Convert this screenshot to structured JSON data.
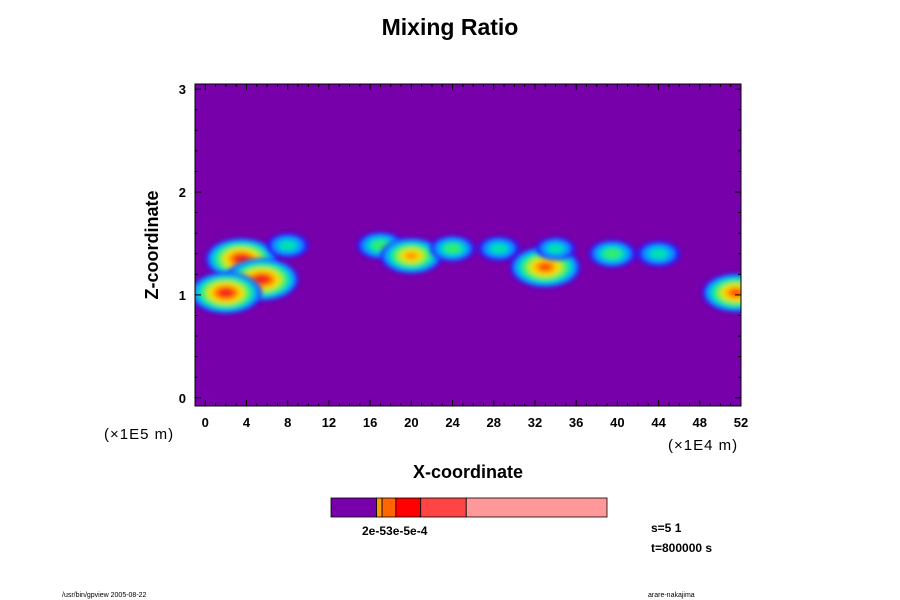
{
  "chart_data": {
    "type": "heatmap",
    "title": "Mixing Ratio",
    "xlabel": "X-coordinate",
    "ylabel": "Z-coordinate",
    "x_scale_note": "(×1E4 m)",
    "y_scale_note": "(×1E5 m)",
    "xlim": [
      -1,
      52
    ],
    "ylim": [
      -0.08,
      3.05
    ],
    "x_ticks": [
      "0",
      "4",
      "8",
      "12",
      "16",
      "20",
      "24",
      "28",
      "32",
      "36",
      "40",
      "44",
      "48",
      "52"
    ],
    "y_ticks": [
      "0",
      "1",
      "2",
      "3"
    ],
    "x_tick_values": [
      0,
      4,
      8,
      12,
      16,
      20,
      24,
      28,
      32,
      36,
      40,
      44,
      48,
      52
    ],
    "y_tick_values": [
      0,
      1,
      2,
      3
    ],
    "background_color": "#7700aa",
    "colormap_levels": [
      "#7700aa",
      "#2222ff",
      "#00a0ff",
      "#00e0b0",
      "#33ee66",
      "#aaee22",
      "#ffd800",
      "#ff9900",
      "#ff4400",
      "#ee2222"
    ],
    "features": [
      {
        "x": 3.5,
        "z": 1.35,
        "intensity": 0.95
      },
      {
        "x": 5.5,
        "z": 1.15,
        "intensity": 0.98
      },
      {
        "x": 2.0,
        "z": 1.02,
        "intensity": 0.95
      },
      {
        "x": 8.0,
        "z": 1.48,
        "intensity": 0.35
      },
      {
        "x": 17.0,
        "z": 1.48,
        "intensity": 0.45
      },
      {
        "x": 20.0,
        "z": 1.38,
        "intensity": 0.75
      },
      {
        "x": 24.0,
        "z": 1.45,
        "intensity": 0.4
      },
      {
        "x": 28.5,
        "z": 1.45,
        "intensity": 0.35
      },
      {
        "x": 33.0,
        "z": 1.27,
        "intensity": 0.92
      },
      {
        "x": 34.0,
        "z": 1.45,
        "intensity": 0.3
      },
      {
        "x": 39.5,
        "z": 1.4,
        "intensity": 0.45
      },
      {
        "x": 44.0,
        "z": 1.4,
        "intensity": 0.38
      },
      {
        "x": 51.5,
        "z": 1.02,
        "intensity": 0.85
      }
    ]
  },
  "colorbar": {
    "colors": [
      "#7700aa",
      "#ff9900",
      "#ff6600",
      "#ff0000",
      "#ff4444",
      "#ff9999"
    ],
    "label": "2e-53e-5e-4"
  },
  "info": {
    "s_label": "s=5 1",
    "t_label": "t=800000 s"
  },
  "footer": {
    "left": "/usr/bin/gpview 2005-08-22",
    "right": "arare-nakajima"
  }
}
